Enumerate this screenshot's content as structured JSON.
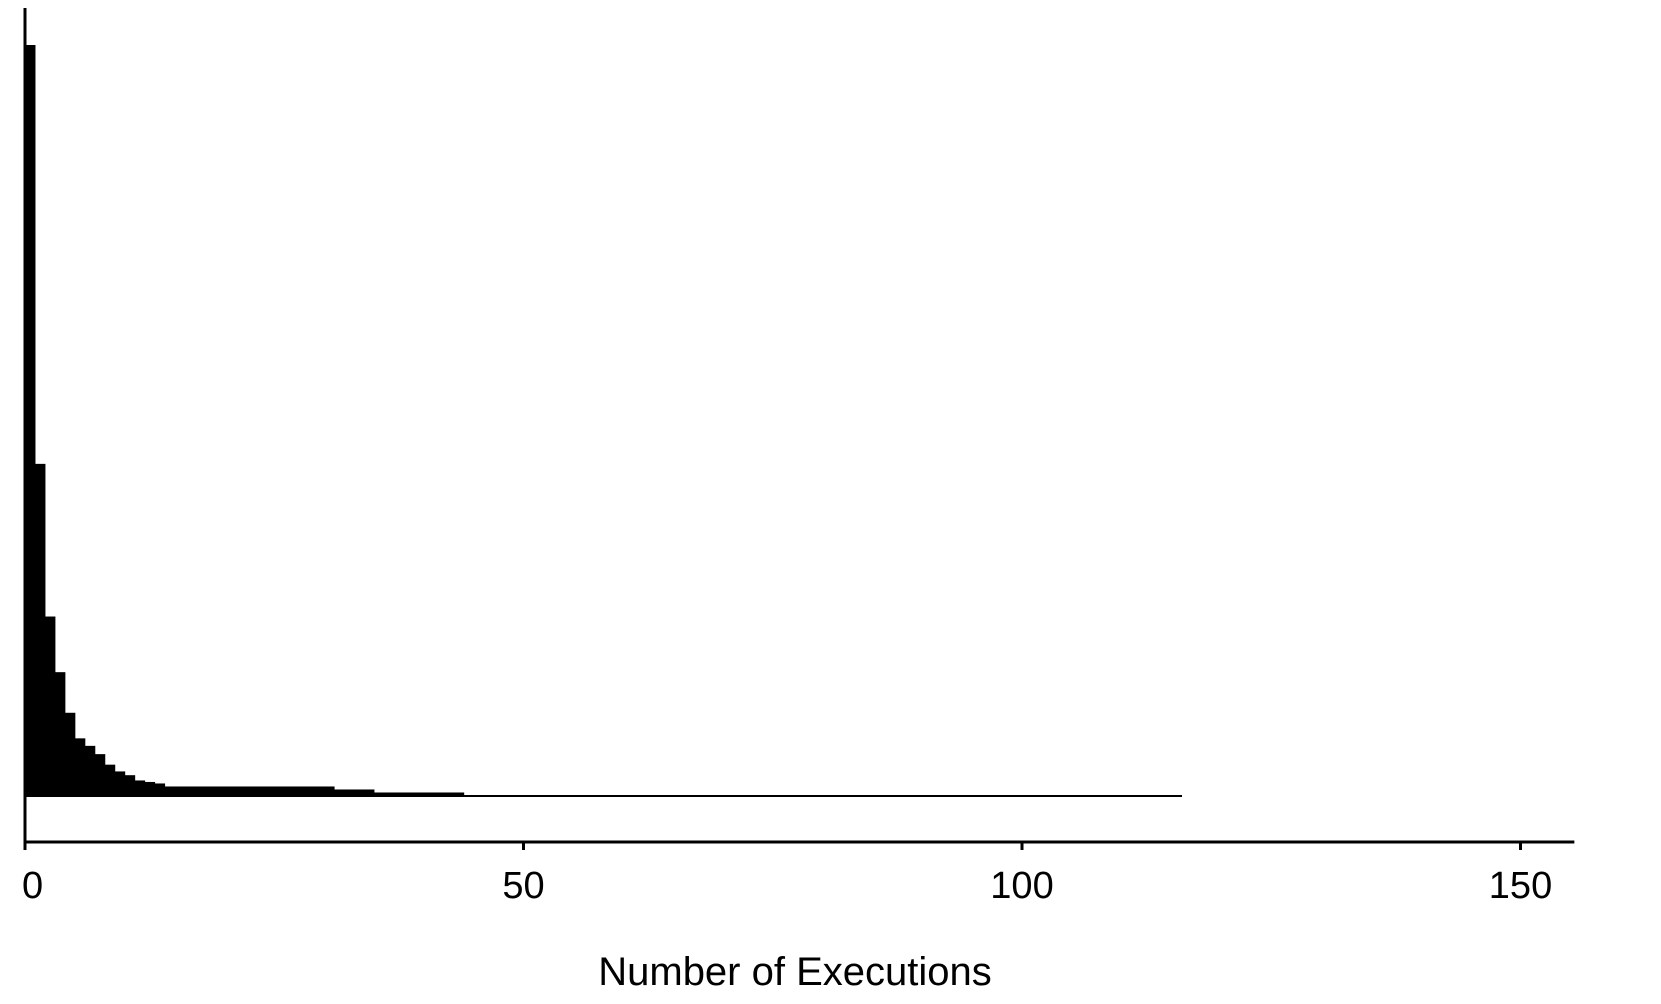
{
  "chart_data": {
    "type": "bar",
    "title": "",
    "xlabel": "Number of Executions",
    "ylabel": "",
    "xlim": [
      0,
      155
    ],
    "xticks": [
      0,
      50,
      100,
      150
    ],
    "ylim": [
      0,
      1
    ],
    "grid": false,
    "legend": "none",
    "bar_color": "#000000",
    "bins": [
      {
        "x0": 0,
        "x1": 1,
        "value": 1.0
      },
      {
        "x0": 1,
        "x1": 2,
        "value": 0.443
      },
      {
        "x0": 2,
        "x1": 3,
        "value": 0.24
      },
      {
        "x0": 3,
        "x1": 4,
        "value": 0.166
      },
      {
        "x0": 4,
        "x1": 5,
        "value": 0.112
      },
      {
        "x0": 5,
        "x1": 6,
        "value": 0.078
      },
      {
        "x0": 6,
        "x1": 7,
        "value": 0.068
      },
      {
        "x0": 7,
        "x1": 8,
        "value": 0.057
      },
      {
        "x0": 8,
        "x1": 9,
        "value": 0.043
      },
      {
        "x0": 9,
        "x1": 10,
        "value": 0.034
      },
      {
        "x0": 10,
        "x1": 11,
        "value": 0.029
      },
      {
        "x0": 11,
        "x1": 12,
        "value": 0.022
      },
      {
        "x0": 12,
        "x1": 13,
        "value": 0.02
      },
      {
        "x0": 13,
        "x1": 14,
        "value": 0.018
      },
      {
        "x0": 14,
        "x1": 31,
        "value": 0.014
      },
      {
        "x0": 31,
        "x1": 35,
        "value": 0.01
      },
      {
        "x0": 35,
        "x1": 44,
        "value": 0.006
      },
      {
        "x0": 44,
        "x1": 116,
        "value": 0.002
      }
    ]
  }
}
